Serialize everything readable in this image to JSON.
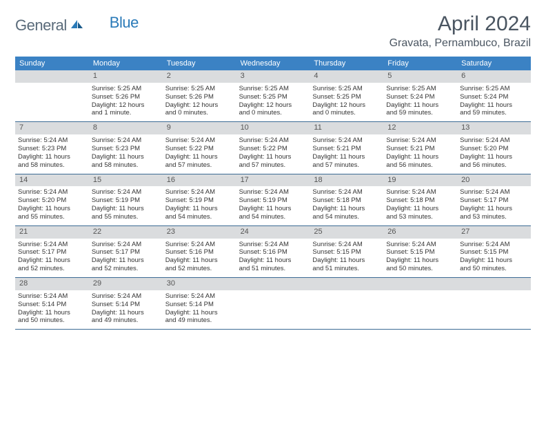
{
  "brand": {
    "part1": "General",
    "part2": "Blue"
  },
  "title": "April 2024",
  "location": "Gravata, Pernambuco, Brazil",
  "colors": {
    "header_bg": "#3b82c4",
    "header_text": "#ffffff",
    "daynum_bg": "#dadcde",
    "week_border": "#3b6a94",
    "title_color": "#4a5561",
    "logo_gray": "#5a6b7a",
    "logo_blue": "#2a7ab8"
  },
  "day_headers": [
    "Sunday",
    "Monday",
    "Tuesday",
    "Wednesday",
    "Thursday",
    "Friday",
    "Saturday"
  ],
  "weeks": [
    [
      {
        "empty": true
      },
      {
        "day": "1",
        "sunrise": "Sunrise: 5:25 AM",
        "sunset": "Sunset: 5:26 PM",
        "daylight1": "Daylight: 12 hours",
        "daylight2": "and 1 minute."
      },
      {
        "day": "2",
        "sunrise": "Sunrise: 5:25 AM",
        "sunset": "Sunset: 5:26 PM",
        "daylight1": "Daylight: 12 hours",
        "daylight2": "and 0 minutes."
      },
      {
        "day": "3",
        "sunrise": "Sunrise: 5:25 AM",
        "sunset": "Sunset: 5:25 PM",
        "daylight1": "Daylight: 12 hours",
        "daylight2": "and 0 minutes."
      },
      {
        "day": "4",
        "sunrise": "Sunrise: 5:25 AM",
        "sunset": "Sunset: 5:25 PM",
        "daylight1": "Daylight: 12 hours",
        "daylight2": "and 0 minutes."
      },
      {
        "day": "5",
        "sunrise": "Sunrise: 5:25 AM",
        "sunset": "Sunset: 5:24 PM",
        "daylight1": "Daylight: 11 hours",
        "daylight2": "and 59 minutes."
      },
      {
        "day": "6",
        "sunrise": "Sunrise: 5:25 AM",
        "sunset": "Sunset: 5:24 PM",
        "daylight1": "Daylight: 11 hours",
        "daylight2": "and 59 minutes."
      }
    ],
    [
      {
        "day": "7",
        "sunrise": "Sunrise: 5:24 AM",
        "sunset": "Sunset: 5:23 PM",
        "daylight1": "Daylight: 11 hours",
        "daylight2": "and 58 minutes."
      },
      {
        "day": "8",
        "sunrise": "Sunrise: 5:24 AM",
        "sunset": "Sunset: 5:23 PM",
        "daylight1": "Daylight: 11 hours",
        "daylight2": "and 58 minutes."
      },
      {
        "day": "9",
        "sunrise": "Sunrise: 5:24 AM",
        "sunset": "Sunset: 5:22 PM",
        "daylight1": "Daylight: 11 hours",
        "daylight2": "and 57 minutes."
      },
      {
        "day": "10",
        "sunrise": "Sunrise: 5:24 AM",
        "sunset": "Sunset: 5:22 PM",
        "daylight1": "Daylight: 11 hours",
        "daylight2": "and 57 minutes."
      },
      {
        "day": "11",
        "sunrise": "Sunrise: 5:24 AM",
        "sunset": "Sunset: 5:21 PM",
        "daylight1": "Daylight: 11 hours",
        "daylight2": "and 57 minutes."
      },
      {
        "day": "12",
        "sunrise": "Sunrise: 5:24 AM",
        "sunset": "Sunset: 5:21 PM",
        "daylight1": "Daylight: 11 hours",
        "daylight2": "and 56 minutes."
      },
      {
        "day": "13",
        "sunrise": "Sunrise: 5:24 AM",
        "sunset": "Sunset: 5:20 PM",
        "daylight1": "Daylight: 11 hours",
        "daylight2": "and 56 minutes."
      }
    ],
    [
      {
        "day": "14",
        "sunrise": "Sunrise: 5:24 AM",
        "sunset": "Sunset: 5:20 PM",
        "daylight1": "Daylight: 11 hours",
        "daylight2": "and 55 minutes."
      },
      {
        "day": "15",
        "sunrise": "Sunrise: 5:24 AM",
        "sunset": "Sunset: 5:19 PM",
        "daylight1": "Daylight: 11 hours",
        "daylight2": "and 55 minutes."
      },
      {
        "day": "16",
        "sunrise": "Sunrise: 5:24 AM",
        "sunset": "Sunset: 5:19 PM",
        "daylight1": "Daylight: 11 hours",
        "daylight2": "and 54 minutes."
      },
      {
        "day": "17",
        "sunrise": "Sunrise: 5:24 AM",
        "sunset": "Sunset: 5:19 PM",
        "daylight1": "Daylight: 11 hours",
        "daylight2": "and 54 minutes."
      },
      {
        "day": "18",
        "sunrise": "Sunrise: 5:24 AM",
        "sunset": "Sunset: 5:18 PM",
        "daylight1": "Daylight: 11 hours",
        "daylight2": "and 54 minutes."
      },
      {
        "day": "19",
        "sunrise": "Sunrise: 5:24 AM",
        "sunset": "Sunset: 5:18 PM",
        "daylight1": "Daylight: 11 hours",
        "daylight2": "and 53 minutes."
      },
      {
        "day": "20",
        "sunrise": "Sunrise: 5:24 AM",
        "sunset": "Sunset: 5:17 PM",
        "daylight1": "Daylight: 11 hours",
        "daylight2": "and 53 minutes."
      }
    ],
    [
      {
        "day": "21",
        "sunrise": "Sunrise: 5:24 AM",
        "sunset": "Sunset: 5:17 PM",
        "daylight1": "Daylight: 11 hours",
        "daylight2": "and 52 minutes."
      },
      {
        "day": "22",
        "sunrise": "Sunrise: 5:24 AM",
        "sunset": "Sunset: 5:17 PM",
        "daylight1": "Daylight: 11 hours",
        "daylight2": "and 52 minutes."
      },
      {
        "day": "23",
        "sunrise": "Sunrise: 5:24 AM",
        "sunset": "Sunset: 5:16 PM",
        "daylight1": "Daylight: 11 hours",
        "daylight2": "and 52 minutes."
      },
      {
        "day": "24",
        "sunrise": "Sunrise: 5:24 AM",
        "sunset": "Sunset: 5:16 PM",
        "daylight1": "Daylight: 11 hours",
        "daylight2": "and 51 minutes."
      },
      {
        "day": "25",
        "sunrise": "Sunrise: 5:24 AM",
        "sunset": "Sunset: 5:15 PM",
        "daylight1": "Daylight: 11 hours",
        "daylight2": "and 51 minutes."
      },
      {
        "day": "26",
        "sunrise": "Sunrise: 5:24 AM",
        "sunset": "Sunset: 5:15 PM",
        "daylight1": "Daylight: 11 hours",
        "daylight2": "and 50 minutes."
      },
      {
        "day": "27",
        "sunrise": "Sunrise: 5:24 AM",
        "sunset": "Sunset: 5:15 PM",
        "daylight1": "Daylight: 11 hours",
        "daylight2": "and 50 minutes."
      }
    ],
    [
      {
        "day": "28",
        "sunrise": "Sunrise: 5:24 AM",
        "sunset": "Sunset: 5:14 PM",
        "daylight1": "Daylight: 11 hours",
        "daylight2": "and 50 minutes."
      },
      {
        "day": "29",
        "sunrise": "Sunrise: 5:24 AM",
        "sunset": "Sunset: 5:14 PM",
        "daylight1": "Daylight: 11 hours",
        "daylight2": "and 49 minutes."
      },
      {
        "day": "30",
        "sunrise": "Sunrise: 5:24 AM",
        "sunset": "Sunset: 5:14 PM",
        "daylight1": "Daylight: 11 hours",
        "daylight2": "and 49 minutes."
      },
      {
        "empty": true
      },
      {
        "empty": true
      },
      {
        "empty": true
      },
      {
        "empty": true
      }
    ]
  ]
}
